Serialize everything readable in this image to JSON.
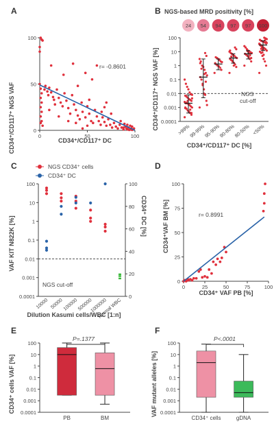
{
  "figure": {
    "colors": {
      "red": "#e0303c",
      "blue": "#2a63a8",
      "green": "#3cba3c",
      "dark_red": "#cf2b3c",
      "pink": "#ee91a5",
      "axis": "#444444"
    },
    "panels": [
      {
        "letter": "A",
        "xlabel": "CD34⁺/CD117⁺ DC",
        "ylabel": "CD34⁺/CD117⁺ NGS VAF",
        "annotation": "r= -0.8601"
      },
      {
        "letter": "B",
        "title": "NGS-based MRD positivity [%]",
        "xlabel": "CD34⁺/CD117⁺ DC [%]",
        "ylabel": "CD34⁺/CD117⁺ NGS VAF [%]",
        "cutoff_label_1": "NGS",
        "cutoff_label_2": "cut-off"
      },
      {
        "letter": "C",
        "legend_ngs": "NGS CD34⁺ cells",
        "legend_dc": "CD34⁺ DC",
        "xlabel": "Dilution Kasumi cells/WBC [1:n]",
        "ylabel": "VAF KIT N822K [%]",
        "ylabel_right": "CD34⁺ DC [%]",
        "cutoff_label": "NGS cut-off"
      },
      {
        "letter": "D",
        "xlabel": "CD34⁺ VAF PB [%]",
        "ylabel": "CD34⁺VAF BM [%]",
        "annotation": "r= 0.8991"
      },
      {
        "letter": "E",
        "ylabel": "CD34⁺ cells VAF [%]",
        "pvalue": "P=.1377"
      },
      {
        "letter": "F",
        "ylabel": "VAF mutant alleles [%]",
        "pvalue": "P<.0001"
      }
    ]
  },
  "chart_data": [
    {
      "panel": "A",
      "type": "scatter",
      "xlim": [
        0,
        100
      ],
      "ylim": [
        0,
        100
      ],
      "xticks": [
        0,
        50,
        100
      ],
      "yticks": [
        0,
        50,
        100
      ],
      "regression": {
        "x": [
          0,
          100
        ],
        "y": [
          49,
          0
        ]
      },
      "points": [
        [
          0,
          50
        ],
        [
          0,
          85
        ],
        [
          0,
          90
        ],
        [
          1,
          100
        ],
        [
          2,
          98
        ],
        [
          3,
          97
        ],
        [
          1,
          45
        ],
        [
          2,
          40
        ],
        [
          1,
          35
        ],
        [
          2,
          30
        ],
        [
          1,
          25
        ],
        [
          2,
          20
        ],
        [
          1,
          15
        ],
        [
          2,
          10
        ],
        [
          1,
          8
        ],
        [
          3,
          5
        ],
        [
          5,
          44
        ],
        [
          6,
          48
        ],
        [
          8,
          42
        ],
        [
          9,
          38
        ],
        [
          10,
          46
        ],
        [
          12,
          41
        ],
        [
          14,
          36
        ],
        [
          15,
          33
        ],
        [
          16,
          28
        ],
        [
          18,
          44
        ],
        [
          20,
          35
        ],
        [
          22,
          30
        ],
        [
          24,
          26
        ],
        [
          26,
          40
        ],
        [
          28,
          32
        ],
        [
          30,
          24
        ],
        [
          32,
          18
        ],
        [
          34,
          38
        ],
        [
          36,
          28
        ],
        [
          38,
          22
        ],
        [
          40,
          16
        ],
        [
          42,
          12
        ],
        [
          44,
          30
        ],
        [
          45,
          20
        ],
        [
          48,
          14
        ],
        [
          50,
          26
        ],
        [
          52,
          18
        ],
        [
          54,
          10
        ],
        [
          56,
          8
        ],
        [
          58,
          22
        ],
        [
          60,
          15
        ],
        [
          62,
          10
        ],
        [
          64,
          6
        ],
        [
          66,
          14
        ],
        [
          68,
          9
        ],
        [
          70,
          5
        ],
        [
          72,
          12
        ],
        [
          74,
          6
        ],
        [
          76,
          3
        ],
        [
          78,
          8
        ],
        [
          80,
          4
        ],
        [
          82,
          2
        ],
        [
          84,
          6
        ],
        [
          86,
          3
        ],
        [
          88,
          1
        ],
        [
          90,
          4
        ],
        [
          91,
          2
        ],
        [
          92,
          1
        ],
        [
          93,
          3
        ],
        [
          94,
          0.5
        ],
        [
          95,
          1
        ],
        [
          96,
          2
        ],
        [
          97,
          0.5
        ],
        [
          98,
          1
        ],
        [
          60,
          70
        ],
        [
          55,
          55
        ],
        [
          48,
          62
        ],
        [
          35,
          72
        ],
        [
          25,
          60
        ],
        [
          12,
          70
        ],
        [
          40,
          48
        ],
        [
          70,
          30
        ],
        [
          65,
          20
        ],
        [
          30,
          10
        ],
        [
          20,
          15
        ],
        [
          10,
          22
        ],
        [
          75,
          18
        ],
        [
          85,
          10
        ],
        [
          50,
          5
        ],
        [
          45,
          2
        ],
        [
          95,
          5
        ],
        [
          89,
          7
        ],
        [
          92,
          6
        ],
        [
          88,
          3
        ],
        [
          99,
          2
        ],
        [
          97,
          4
        ],
        [
          68,
          25
        ],
        [
          52,
          33
        ],
        [
          38,
          8
        ]
      ]
    },
    {
      "panel": "B",
      "type": "scatter",
      "log_y": true,
      "ylim": [
        0.0001,
        100
      ],
      "yticks": [
        "0.0001",
        "0.001",
        "0.01",
        "0.1",
        "1",
        "10",
        "100"
      ],
      "categories": [
        ">99%",
        "99-95%",
        "95-90%",
        "90-80%",
        "80-50%",
        "<50%"
      ],
      "cutoff": 0.01,
      "positivity": [
        24,
        54,
        94,
        97,
        97,
        100
      ],
      "positivity_labels": [
        "24",
        "54",
        "94",
        "97",
        "97",
        "100"
      ],
      "summary": [
        {
          "median": 0.002,
          "q1": 0.0004,
          "q3": 0.008
        },
        {
          "median": 0.15,
          "q1": 0.005,
          "q3": 3
        },
        {
          "median": 1.3,
          "q1": 0.5,
          "q3": 3
        },
        {
          "median": 3.5,
          "q1": 1.5,
          "q3": 7
        },
        {
          "median": 7,
          "q1": 3,
          "q3": 12
        },
        {
          "median": 30,
          "q1": 12,
          "q3": 60
        }
      ],
      "series": [
        {
          "values": [
            0.0002,
            0.0003,
            0.0004,
            0.0005,
            0.0006,
            0.0008,
            0.001,
            0.001,
            0.0012,
            0.0015,
            0.0018,
            0.002,
            0.002,
            0.0025,
            0.003,
            0.0035,
            0.004,
            0.005,
            0.006,
            0.007,
            0.008,
            0.009,
            0.012,
            0.02,
            0.03,
            0.05,
            0.1,
            0.0004,
            0.0007,
            0.0015,
            0.003,
            0.0022,
            0.0009,
            0.0045
          ]
        },
        {
          "values": [
            0.001,
            0.003,
            0.008,
            0.02,
            0.05,
            0.1,
            0.15,
            0.2,
            0.3,
            0.5,
            0.8,
            1,
            2,
            3,
            5,
            8,
            0.01,
            0.04,
            0.6,
            1.5,
            0.0015,
            0.07,
            0.25
          ]
        },
        {
          "values": [
            0.3,
            0.5,
            0.7,
            0.9,
            1,
            1.2,
            1.5,
            1.8,
            2,
            2.5,
            3,
            3.5,
            4
          ]
        },
        {
          "values": [
            0.3,
            0.8,
            1.2,
            1.6,
            2,
            2.5,
            3,
            3.5,
            4,
            5,
            6,
            7,
            8,
            10,
            15,
            20,
            1,
            2.2,
            4.5,
            12
          ]
        },
        {
          "values": [
            1,
            2,
            3,
            4,
            5,
            6,
            7,
            8,
            9,
            10,
            12,
            15,
            20,
            25,
            3.5,
            5.5,
            8.5,
            11
          ]
        },
        {
          "values": [
            0.3,
            1,
            2,
            3,
            5,
            8,
            10,
            12,
            15,
            18,
            20,
            25,
            30,
            35,
            40,
            45,
            50,
            55,
            60,
            70,
            80,
            90,
            100,
            14,
            22,
            28,
            38,
            48,
            65,
            6,
            9,
            16,
            33,
            42
          ]
        }
      ]
    },
    {
      "panel": "C",
      "type": "scatter",
      "log_y": true,
      "ylim": [
        0.0001,
        100
      ],
      "yticks": [
        "0.0001",
        "0.001",
        "0.01",
        "0.1",
        "1",
        "10",
        "100"
      ],
      "y2lim": [
        0,
        100
      ],
      "y2ticks": [
        0,
        20,
        40,
        60,
        80,
        100
      ],
      "categories": [
        "10000",
        "50000",
        "100000",
        "500000",
        "1000000",
        "Normal WBC"
      ],
      "cutoff": 0.01,
      "series": [
        {
          "name": "NGS CD34⁺ cells",
          "values": [
            [
              0,
              60
            ],
            [
              0,
              45
            ],
            [
              0,
              30
            ],
            [
              1,
              30
            ],
            [
              1,
              18
            ],
            [
              1,
              12
            ],
            [
              2,
              22
            ],
            [
              2,
              12
            ],
            [
              2,
              5
            ],
            [
              3,
              4
            ],
            [
              3,
              1.5
            ],
            [
              3,
              1
            ],
            [
              4,
              0.7
            ],
            [
              4,
              0.5
            ],
            [
              4,
              0.3
            ]
          ]
        },
        {
          "name": "CD34⁺ DC",
          "axis": "right",
          "values": [
            [
              0,
              49
            ],
            [
              0,
              41
            ],
            [
              0,
              43
            ],
            [
              1,
              73
            ],
            [
              1,
              80
            ],
            [
              2,
              83
            ],
            [
              2,
              88
            ],
            [
              3,
              83
            ],
            [
              4,
              100
            ]
          ]
        },
        {
          "name": "Normal WBC",
          "values": [
            [
              5,
              0.0015
            ],
            [
              5,
              0.0012
            ],
            [
              5,
              0.0009
            ]
          ]
        }
      ]
    },
    {
      "panel": "D",
      "type": "scatter",
      "xlim": [
        0,
        100
      ],
      "ylim": [
        0,
        100
      ],
      "xticks": [
        0,
        25,
        50,
        75,
        100
      ],
      "yticks": [
        0,
        25,
        50,
        75,
        100
      ],
      "regression": {
        "x": [
          0,
          95
        ],
        "y": [
          0,
          66
        ]
      },
      "points": [
        [
          0,
          0
        ],
        [
          1,
          1
        ],
        [
          2,
          1
        ],
        [
          3,
          0
        ],
        [
          4,
          1
        ],
        [
          5,
          2
        ],
        [
          6,
          1
        ],
        [
          8,
          2
        ],
        [
          10,
          1
        ],
        [
          12,
          3
        ],
        [
          15,
          3
        ],
        [
          18,
          10
        ],
        [
          20,
          12
        ],
        [
          22,
          4
        ],
        [
          25,
          5
        ],
        [
          28,
          4
        ],
        [
          30,
          12
        ],
        [
          33,
          8
        ],
        [
          35,
          20
        ],
        [
          38,
          17
        ],
        [
          40,
          23
        ],
        [
          43,
          20
        ],
        [
          45,
          24
        ],
        [
          48,
          35
        ],
        [
          50,
          30
        ],
        [
          95,
          90
        ],
        [
          96,
          100
        ],
        [
          95,
          80
        ],
        [
          94,
          72
        ]
      ]
    },
    {
      "panel": "E",
      "type": "box",
      "log_y": true,
      "ylim": [
        0.0001,
        100
      ],
      "yticks": [
        "0.0001",
        "0.001",
        "0.01",
        "0.1",
        "1",
        "10",
        "100"
      ],
      "categories": [
        "PB",
        "BM"
      ],
      "series": [
        {
          "min": 0.003,
          "q1": 0.003,
          "median": 10,
          "q3": 40,
          "max": 100
        },
        {
          "min": 0.0005,
          "q1": 0.003,
          "median": 0.6,
          "q3": 14,
          "max": 100
        }
      ]
    },
    {
      "panel": "F",
      "type": "box",
      "log_y": true,
      "ylim": [
        0.0001,
        100
      ],
      "yticks": [
        "0.0001",
        "0.001",
        "0.01",
        "0.1",
        "1",
        "10",
        "100"
      ],
      "categories": [
        "CD34⁺ cells",
        "gDNA"
      ],
      "series": [
        {
          "min": 0.0001,
          "q1": 0.002,
          "median": 2,
          "q3": 20,
          "max": 80
        },
        {
          "min": 0.0001,
          "q1": 0.002,
          "median": 0.005,
          "q3": 0.05,
          "max": 10
        }
      ]
    }
  ]
}
